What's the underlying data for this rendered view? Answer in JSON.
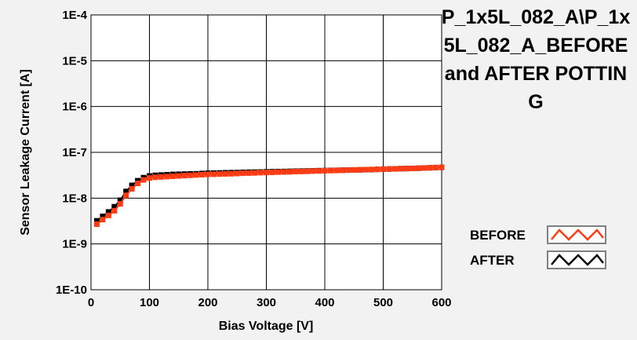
{
  "chart_data": {
    "type": "line",
    "title": "P_1x5L_082_A\\P_1x5L_082_A_BEFORE and AFTER POTTING",
    "xlabel": "Bias Voltage [V]",
    "ylabel": "Sensor Leakage Current [A]",
    "xlim": [
      0,
      600
    ],
    "ylim": [
      1e-10,
      0.0001
    ],
    "yscale": "log",
    "grid": true,
    "legend_position": "bottom-right",
    "x_ticks": [
      "0",
      "100",
      "200",
      "300",
      "400",
      "500",
      "600"
    ],
    "y_ticks": [
      "1E-10",
      "1E-9",
      "1E-8",
      "1E-7",
      "1E-6",
      "1E-5",
      "1E-4"
    ],
    "x": [
      10,
      20,
      30,
      40,
      50,
      60,
      70,
      80,
      90,
      100,
      110,
      120,
      130,
      140,
      150,
      160,
      170,
      180,
      190,
      200,
      210,
      220,
      230,
      240,
      250,
      260,
      270,
      280,
      290,
      300,
      310,
      320,
      330,
      340,
      350,
      360,
      370,
      380,
      390,
      400,
      410,
      420,
      430,
      440,
      450,
      460,
      470,
      480,
      490,
      500,
      510,
      520,
      530,
      540,
      550,
      560,
      570,
      580,
      590,
      600
    ],
    "series": [
      {
        "name": "BEFORE",
        "color": "#ff3b14",
        "values": [
          2.7e-09,
          3.4e-09,
          4.2e-09,
          5.3e-09,
          7.5e-09,
          1.15e-08,
          1.6e-08,
          2.1e-08,
          2.5e-08,
          2.75e-08,
          2.85e-08,
          2.9e-08,
          2.95e-08,
          3e-08,
          3.05e-08,
          3.1e-08,
          3.15e-08,
          3.2e-08,
          3.25e-08,
          3.3e-08,
          3.32e-08,
          3.35e-08,
          3.38e-08,
          3.4e-08,
          3.45e-08,
          3.5e-08,
          3.52e-08,
          3.55e-08,
          3.6e-08,
          3.62e-08,
          3.65e-08,
          3.7e-08,
          3.72e-08,
          3.75e-08,
          3.8e-08,
          3.82e-08,
          3.85e-08,
          3.9e-08,
          3.92e-08,
          3.95e-08,
          4e-08,
          4.02e-08,
          4.05e-08,
          4.1e-08,
          4.12e-08,
          4.15e-08,
          4.2e-08,
          4.22e-08,
          4.25e-08,
          4.3e-08,
          4.32e-08,
          4.35e-08,
          4.4e-08,
          4.42e-08,
          4.45e-08,
          4.5e-08,
          4.55e-08,
          4.6e-08,
          4.65e-08,
          4.7e-08
        ]
      },
      {
        "name": "AFTER",
        "color": "#000000",
        "values": [
          3.2e-09,
          4e-09,
          5e-09,
          6.5e-09,
          9e-09,
          1.4e-08,
          1.9e-08,
          2.4e-08,
          2.8e-08,
          3.05e-08,
          3.15e-08,
          3.2e-08,
          3.25e-08,
          3.3e-08,
          3.32e-08,
          3.35e-08,
          3.38e-08,
          3.4e-08,
          3.45e-08,
          3.5e-08,
          3.52e-08,
          3.55e-08,
          3.58e-08,
          3.6e-08,
          3.62e-08,
          3.65e-08,
          3.68e-08,
          3.7e-08,
          3.72e-08,
          3.75e-08,
          3.78e-08,
          3.8e-08,
          3.82e-08,
          3.85e-08,
          3.88e-08,
          3.9e-08,
          3.92e-08,
          3.95e-08,
          3.98e-08,
          4e-08,
          4.03e-08,
          4.05e-08,
          4.08e-08,
          4.1e-08,
          4.13e-08,
          4.15e-08,
          4.18e-08,
          4.2e-08,
          4.25e-08,
          4.3e-08,
          4.33e-08,
          4.36e-08,
          4.4e-08,
          4.43e-08,
          4.46e-08,
          4.5e-08,
          4.55e-08,
          4.6e-08,
          4.65e-08,
          4.7e-08
        ]
      }
    ]
  }
}
